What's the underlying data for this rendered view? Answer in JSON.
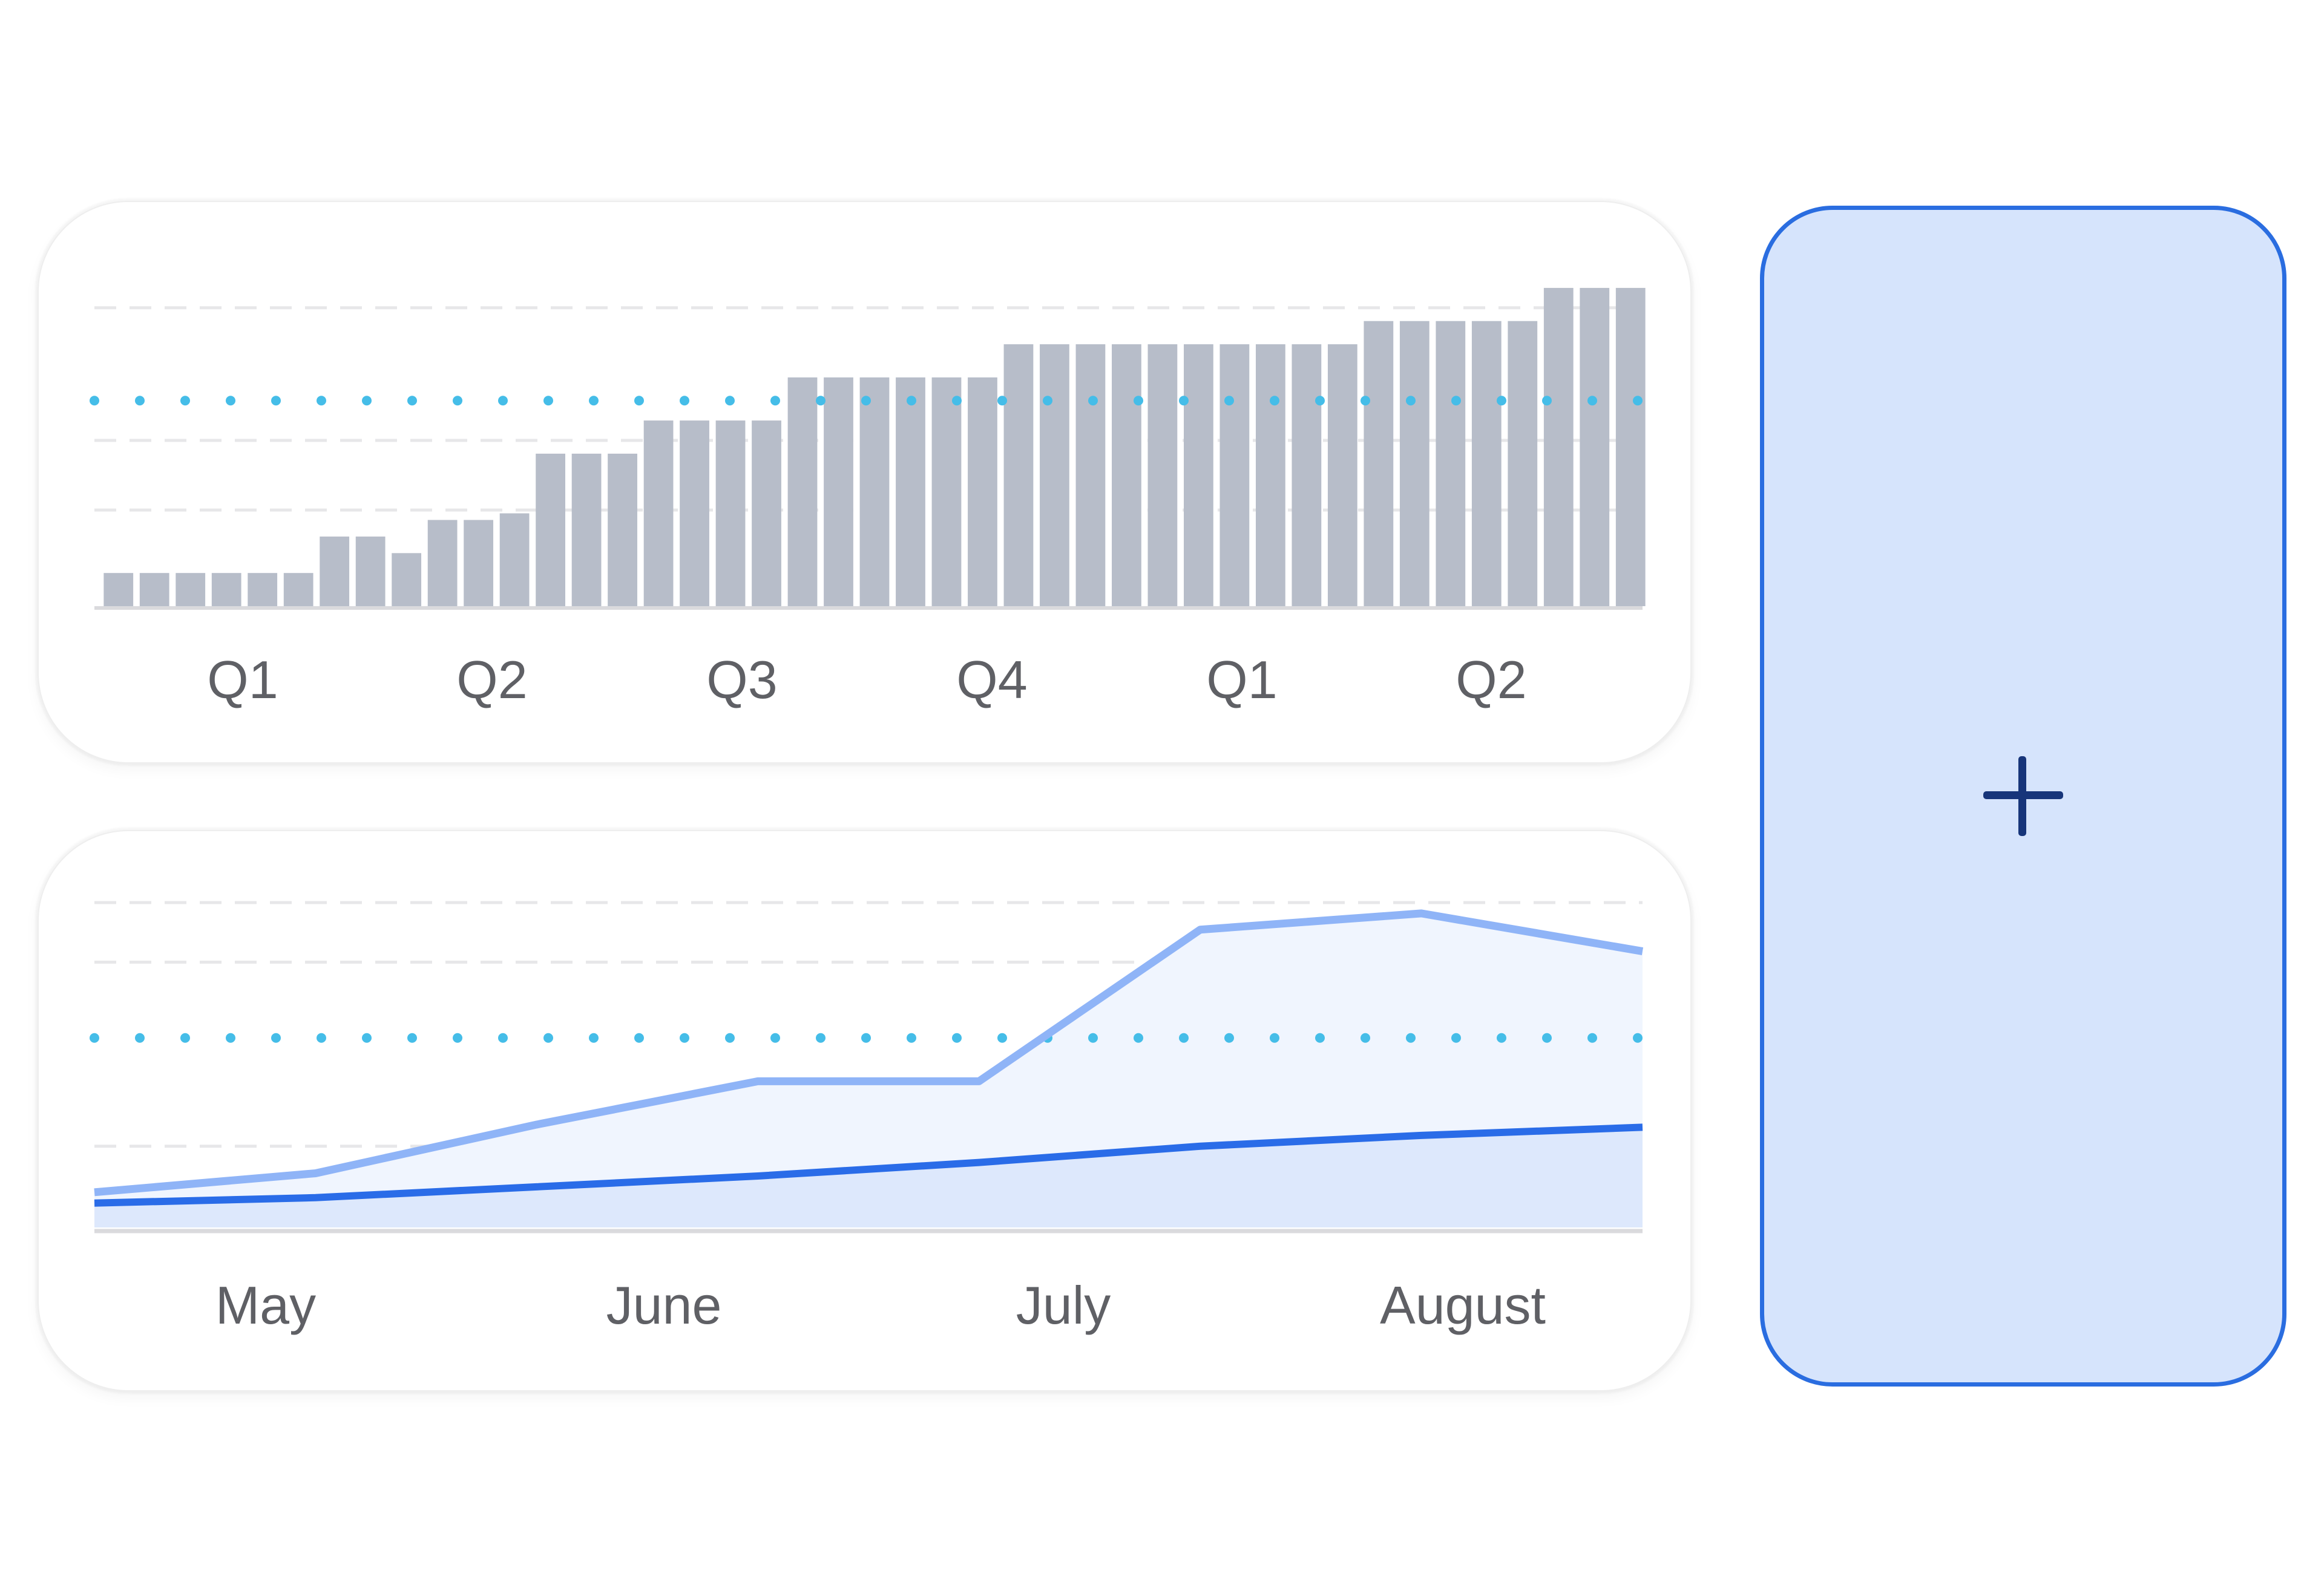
{
  "chart_data": [
    {
      "type": "bar",
      "x_tick_labels": [
        "Q1",
        "Q2",
        "Q3",
        "Q4",
        "Q1",
        "Q2"
      ],
      "values": [
        1,
        1,
        1,
        1,
        1,
        1,
        2.1,
        2.1,
        1.6,
        2.6,
        2.6,
        2.8,
        4.6,
        4.6,
        4.6,
        5.6,
        5.6,
        5.6,
        5.6,
        6.9,
        6.9,
        6.9,
        6.9,
        6.9,
        6.9,
        7.9,
        7.9,
        7.9,
        7.9,
        7.9,
        7.9,
        7.9,
        7.9,
        7.9,
        7.9,
        8.6,
        8.6,
        8.6,
        8.6,
        8.6,
        9.6,
        9.6,
        9.6
      ],
      "ylim": [
        0,
        10
      ],
      "gridlines": [
        2.9,
        5,
        9
      ],
      "reference_line": 6.2,
      "colors": {
        "bar": "#b7bdc9",
        "grid": "#e7e7e9",
        "reference": "#45bde8",
        "axis": "#dadadd"
      }
    },
    {
      "type": "area",
      "x_tick_labels": [
        "May",
        "June",
        "July",
        "August"
      ],
      "series": [
        {
          "values": [
            0.65,
            1.0,
            1.9,
            2.7,
            2.7,
            5.5,
            5.8,
            5.1
          ],
          "color": "#8fb4f7",
          "fill": "#f0f5fe"
        },
        {
          "values": [
            0.45,
            0.55,
            0.75,
            0.95,
            1.2,
            1.5,
            1.7,
            1.85
          ],
          "color": "#2a6ce8",
          "fill": "#dde8fc"
        }
      ],
      "ylim": [
        0,
        6
      ],
      "gridlines": [
        1.5,
        4.9,
        6.0
      ],
      "reference_line": 3.5,
      "colors": {
        "grid": "#e7e7e9",
        "reference": "#45bde8",
        "axis": "#dadadd"
      }
    }
  ],
  "add_tile": {
    "icon": "plus-icon",
    "colors": {
      "fill": "#d6e4fc",
      "border": "#2a6de0",
      "icon": "#17357a"
    }
  }
}
